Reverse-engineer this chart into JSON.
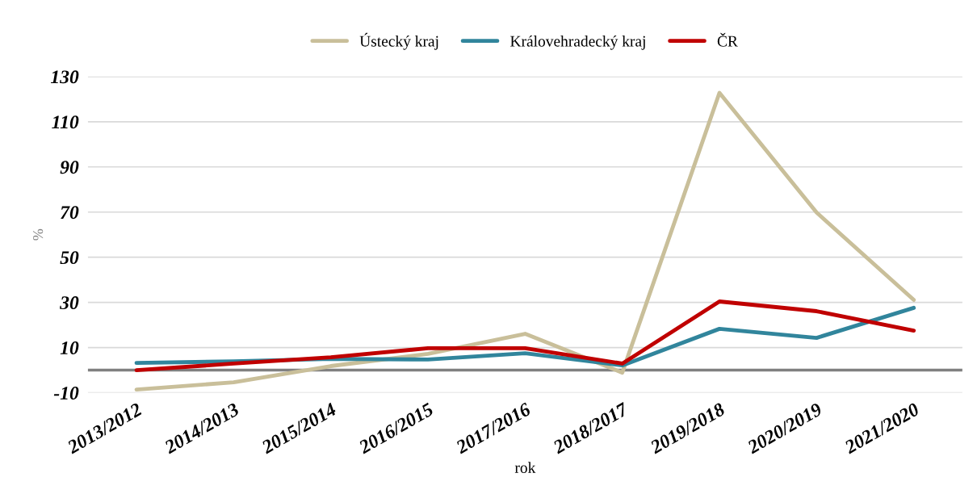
{
  "chart_data": {
    "type": "line",
    "xlabel": "rok",
    "ylabel": "%",
    "categories": [
      "2013/2012",
      "2014/2013",
      "2015/2014",
      "2016/2015",
      "2017/2016",
      "2018/2017",
      "2019/2018",
      "2020/2019",
      "2021/2020"
    ],
    "series": [
      {
        "name": "Ústecký kraj",
        "color": "#c9bf9a",
        "values": [
          -8.6,
          -5.4,
          1.8,
          7.2,
          16.1,
          -1.1,
          122.8,
          69.8,
          31.1
        ]
      },
      {
        "name": "Královehradecký kraj",
        "color": "#31859c",
        "values": [
          3.2,
          3.9,
          5.0,
          4.7,
          7.5,
          2.1,
          18.3,
          14.3,
          27.6
        ]
      },
      {
        "name": "ČR",
        "color": "#c00000",
        "values": [
          0.0,
          2.9,
          5.7,
          9.7,
          9.7,
          2.9,
          30.4,
          26.1,
          17.5
        ]
      }
    ],
    "ylim": [
      -10,
      130
    ],
    "yticks": [
      -10,
      10,
      30,
      50,
      70,
      90,
      110,
      130
    ],
    "ref_lines": [
      {
        "axis": "y",
        "value": 0,
        "color": "#808080"
      }
    ],
    "grid": "y",
    "legend": "top",
    "marker": "none",
    "line_style": "solid"
  }
}
